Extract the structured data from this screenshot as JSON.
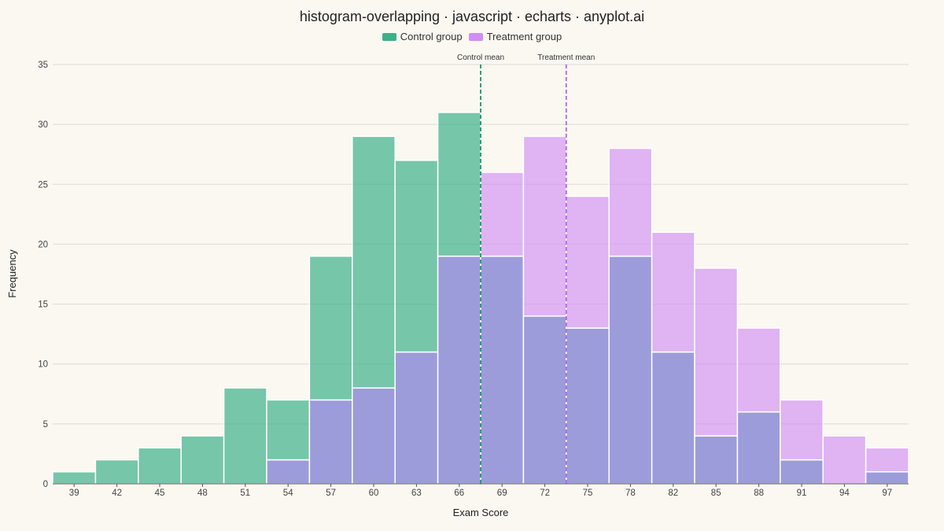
{
  "chart_data": {
    "type": "bar",
    "title": "histogram-overlapping · javascript · echarts · anyplot.ai",
    "xlabel": "Exam Score",
    "ylabel": "Frequency",
    "ylim": [
      0,
      35
    ],
    "yticks": [
      0,
      5,
      10,
      15,
      20,
      25,
      30,
      35
    ],
    "grid": true,
    "legend_position": "top-center",
    "categories": [
      "39",
      "42",
      "45",
      "48",
      "51",
      "54",
      "57",
      "60",
      "63",
      "66",
      "69",
      "72",
      "75",
      "78",
      "82",
      "85",
      "88",
      "91",
      "94",
      "97"
    ],
    "series": [
      {
        "name": "Control group",
        "color": "#3DB08A",
        "values": [
          1,
          2,
          3,
          4,
          8,
          7,
          19,
          29,
          27,
          31,
          19,
          14,
          13,
          19,
          11,
          4,
          6,
          2,
          0,
          1
        ]
      },
      {
        "name": "Treatment group",
        "color": "#D28EF5",
        "values": [
          0,
          0,
          0,
          0,
          0,
          2,
          7,
          8,
          11,
          19,
          26,
          29,
          24,
          28,
          21,
          18,
          13,
          7,
          4,
          3
        ]
      }
    ],
    "overlap_color": "#9C9CDA",
    "annotations": [
      {
        "label": "Control mean",
        "x_category_position": 10.0,
        "color": "#17956D"
      },
      {
        "label": "Treatment mean",
        "x_category_position": 12.0,
        "color": "#B266E8"
      }
    ]
  }
}
